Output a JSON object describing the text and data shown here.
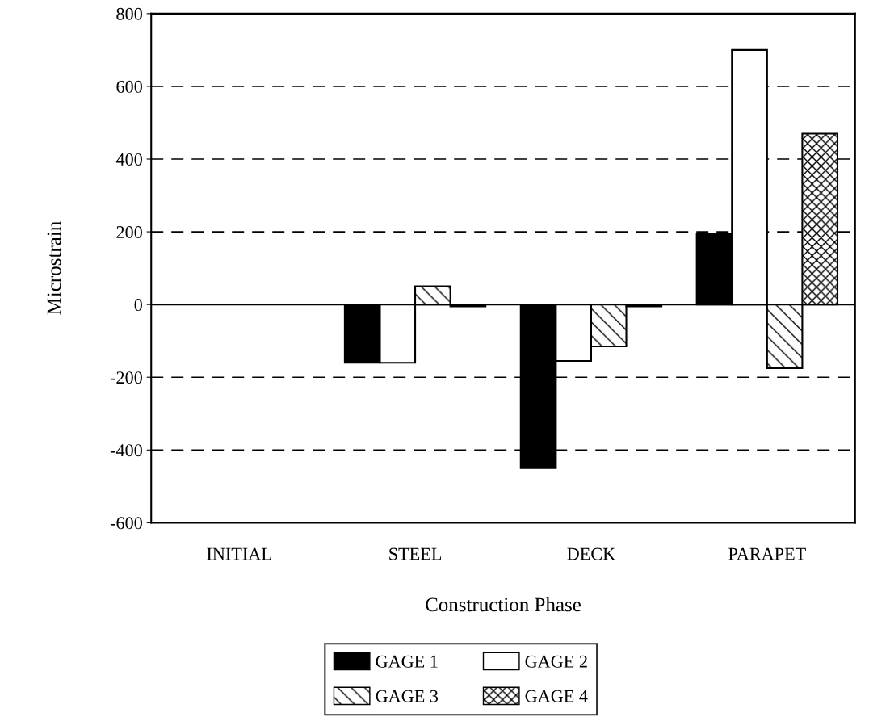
{
  "chart_data": {
    "type": "bar",
    "xlabel": "Construction Phase",
    "ylabel": "Microstrain",
    "categories": [
      "INITIAL",
      "STEEL",
      "DECK",
      "PARAPET"
    ],
    "series": [
      {
        "name": "GAGE 1",
        "color": "#000000",
        "values": [
          0,
          -160,
          -450,
          195
        ]
      },
      {
        "name": "GAGE 2",
        "color": "#ffffff",
        "values": [
          0,
          -160,
          -155,
          700
        ]
      },
      {
        "name": "GAGE 3",
        "color": "#000000",
        "values": [
          0,
          50,
          -115,
          -175
        ]
      },
      {
        "name": "GAGE 4",
        "color": "#000000",
        "values": [
          0,
          -5,
          -5,
          470
        ]
      }
    ],
    "ylim": [
      -600,
      800
    ],
    "yticks": [
      -600,
      -400,
      -200,
      0,
      200,
      400,
      600,
      800
    ],
    "grid": "y",
    "legend": "bottom"
  }
}
